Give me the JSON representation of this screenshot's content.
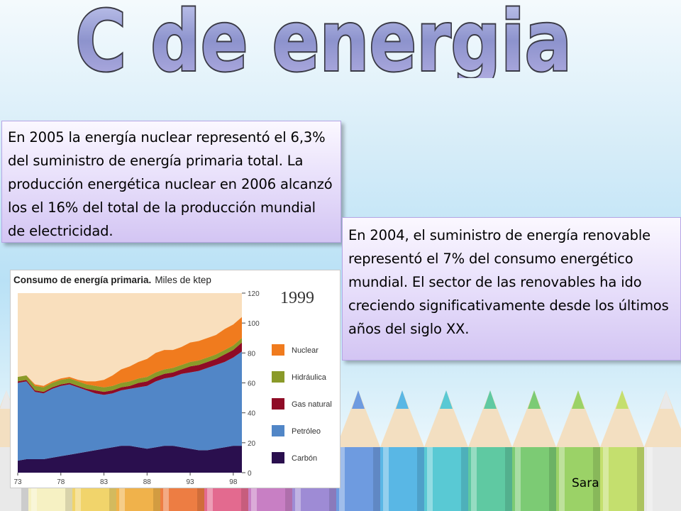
{
  "slide": {
    "title": "C de energia",
    "box1_text": "En 2005 la energía nuclear representó el 6,3% del suministro de energía primaria total. La producción energética nuclear en 2006 alcanzó los el 16% del total de la producción mundial de electricidad.",
    "box2_text": "En 2004, el suministro de energía renovable representó el 7% del consumo energético mundial. El sector de las renovables ha ido creciendo significativamente desde los últimos años del siglo XX.",
    "author": "Sara"
  },
  "colors": {
    "title_fill": "#8f96cf",
    "title_stroke": "#3a3a46",
    "box_border": "#b7a6e6",
    "box_fill": "#e4dafa",
    "chart_bg": "#f9dfbd"
  },
  "pencil_colors": [
    "#e9e9e9",
    "#f6f1c3",
    "#f1d46b",
    "#f0b24b",
    "#ed7d43",
    "#e36a8f",
    "#c87fc4",
    "#9e8bd5",
    "#6e9be0",
    "#59b7e5",
    "#59c9d4",
    "#5fc9a2",
    "#7ccb74",
    "#9bd267",
    "#c4df6e"
  ],
  "chart_data": {
    "type": "area",
    "title": "Consumo de energía primaria.",
    "subtitle": "Miles de ktep",
    "annotation": "1999",
    "x_ticks": [
      "73",
      "78",
      "83",
      "88",
      "93",
      "98"
    ],
    "y_ticks": [
      "0",
      "20",
      "40",
      "60",
      "80",
      "100",
      "120"
    ],
    "xlim": [
      1973,
      1999
    ],
    "ylim": [
      0,
      120
    ],
    "stacked": true,
    "x": [
      1973,
      1974,
      1975,
      1976,
      1977,
      1978,
      1979,
      1980,
      1981,
      1982,
      1983,
      1984,
      1985,
      1986,
      1987,
      1988,
      1989,
      1990,
      1991,
      1992,
      1993,
      1994,
      1995,
      1996,
      1997,
      1998,
      1999
    ],
    "series": [
      {
        "name": "Carbón",
        "color": "#2a0f4e",
        "values": [
          8,
          9,
          9,
          9,
          10,
          11,
          12,
          13,
          14,
          15,
          16,
          17,
          18,
          18,
          17,
          16,
          17,
          18,
          18,
          17,
          16,
          15,
          15,
          16,
          17,
          18,
          18
        ]
      },
      {
        "name": "Petróleo",
        "color": "#5186c7",
        "values": [
          52,
          52,
          45,
          44,
          46,
          47,
          47,
          44,
          41,
          38,
          36,
          36,
          37,
          38,
          40,
          42,
          44,
          45,
          46,
          49,
          51,
          53,
          55,
          56,
          57,
          59,
          63
        ]
      },
      {
        "name": "Gas natural",
        "color": "#8f0b26",
        "values": [
          1,
          1,
          1,
          1,
          1,
          1,
          1,
          1,
          1,
          2,
          2,
          2,
          2,
          2,
          3,
          3,
          3,
          3,
          3,
          3,
          4,
          4,
          4,
          4,
          5,
          5,
          6
        ]
      },
      {
        "name": "Hidráulica",
        "color": "#8a9a29",
        "values": [
          3,
          3,
          3,
          3,
          3,
          3,
          3,
          3,
          3,
          3,
          3,
          3,
          3,
          3,
          3,
          3,
          3,
          3,
          3,
          3,
          3,
          3,
          3,
          3,
          3,
          3,
          3
        ]
      },
      {
        "name": "Nuclear",
        "color": "#f07b1e",
        "values": [
          0,
          0,
          1,
          1,
          1,
          1,
          1,
          1,
          2,
          3,
          5,
          7,
          9,
          10,
          11,
          12,
          13,
          13,
          12,
          12,
          13,
          13,
          13,
          13,
          14,
          14,
          14
        ]
      }
    ],
    "legend": {
      "position": "right",
      "order": [
        "Nuclear",
        "Hidráulica",
        "Gas natural",
        "Petróleo",
        "Carbón"
      ]
    },
    "grid": false
  }
}
